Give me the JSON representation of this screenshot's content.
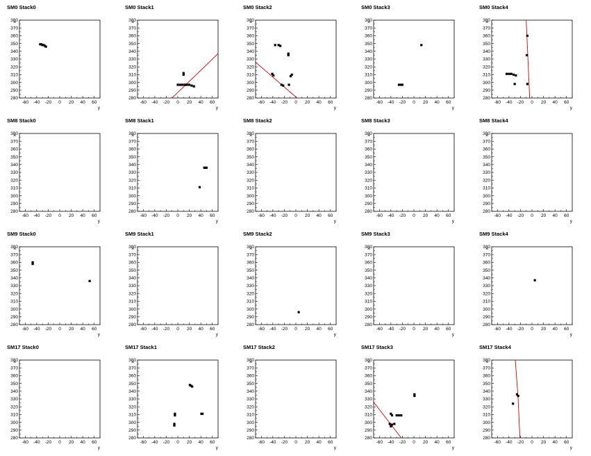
{
  "chart_data": [
    {
      "type": "scatter",
      "title": "SM0 Stack0",
      "xlabel": "y",
      "ylabel": "x",
      "xlim": [
        -70,
        70
      ],
      "ylim": [
        280,
        380
      ],
      "xticks": [
        -60,
        -40,
        -20,
        0,
        20,
        40,
        60
      ],
      "yticks": [
        280,
        290,
        300,
        310,
        320,
        330,
        340,
        350,
        360,
        370,
        380
      ],
      "points": [
        [
          -34,
          349
        ],
        [
          -32,
          349
        ],
        [
          -30,
          348
        ],
        [
          -28,
          348
        ],
        [
          -26,
          347
        ],
        [
          -24,
          346
        ]
      ],
      "lines": []
    },
    {
      "type": "scatter",
      "title": "SM0 Stack1",
      "xlabel": "y",
      "ylabel": "x",
      "xlim": [
        -70,
        70
      ],
      "ylim": [
        280,
        380
      ],
      "xticks": [
        -60,
        -40,
        -20,
        0,
        20,
        40,
        60
      ],
      "yticks": [
        280,
        290,
        300,
        310,
        320,
        330,
        340,
        350,
        360,
        370,
        380
      ],
      "points": [
        [
          0,
          297
        ],
        [
          4,
          297
        ],
        [
          8,
          297
        ],
        [
          12,
          297
        ],
        [
          14,
          297
        ],
        [
          16,
          297
        ],
        [
          20,
          297
        ],
        [
          24,
          296
        ],
        [
          28,
          295
        ],
        [
          10,
          310
        ],
        [
          10,
          312
        ]
      ],
      "lines": [
        [
          [
            -10,
            280
          ],
          [
            70,
            337
          ]
        ]
      ]
    },
    {
      "type": "scatter",
      "title": "SM0 Stack2",
      "xlabel": "y",
      "ylabel": "x",
      "xlim": [
        -70,
        70
      ],
      "ylim": [
        280,
        380
      ],
      "xticks": [
        -60,
        -40,
        -20,
        0,
        20,
        40,
        60
      ],
      "yticks": [
        280,
        290,
        300,
        310,
        320,
        330,
        340,
        350,
        360,
        370,
        380
      ],
      "points": [
        [
          -36,
          348
        ],
        [
          -30,
          348
        ],
        [
          -27,
          347
        ],
        [
          -13,
          335
        ],
        [
          -13,
          337
        ],
        [
          -41,
          311
        ],
        [
          -39,
          309
        ],
        [
          -25,
          297
        ],
        [
          -22,
          296
        ],
        [
          -12,
          297
        ],
        [
          -7,
          310
        ],
        [
          -9,
          308
        ]
      ],
      "lines": [
        [
          [
            -70,
            326
          ],
          [
            2,
            280
          ]
        ]
      ]
    },
    {
      "type": "scatter",
      "title": "SM0 Stack3",
      "xlabel": "y",
      "ylabel": "x",
      "xlim": [
        -70,
        70
      ],
      "ylim": [
        280,
        380
      ],
      "xticks": [
        -60,
        -40,
        -20,
        0,
        20,
        40,
        60
      ],
      "yticks": [
        280,
        290,
        300,
        310,
        320,
        330,
        340,
        350,
        360,
        370,
        380
      ],
      "points": [
        [
          13,
          348
        ],
        [
          -26,
          297
        ],
        [
          -23,
          297
        ],
        [
          -20,
          297
        ]
      ],
      "lines": []
    },
    {
      "type": "scatter",
      "title": "SM0 Stack4",
      "xlabel": "y",
      "ylabel": "x",
      "xlim": [
        -70,
        70
      ],
      "ylim": [
        280,
        380
      ],
      "xticks": [
        -60,
        -40,
        -20,
        0,
        20,
        40,
        60
      ],
      "yticks": [
        280,
        290,
        300,
        310,
        320,
        330,
        340,
        350,
        360,
        370,
        380
      ],
      "points": [
        [
          -8,
          360
        ],
        [
          -9,
          335
        ],
        [
          -44,
          311
        ],
        [
          -40,
          311
        ],
        [
          -36,
          311
        ],
        [
          -32,
          310
        ],
        [
          -28,
          309
        ],
        [
          -30,
          298
        ],
        [
          -8,
          298
        ]
      ],
      "lines": [
        [
          [
            -10,
            380
          ],
          [
            -7,
            330
          ],
          [
            -4,
            280
          ]
        ]
      ]
    },
    {
      "type": "scatter",
      "title": "SM8 Stack0",
      "xlabel": "y",
      "ylabel": "x",
      "xlim": [
        -70,
        70
      ],
      "ylim": [
        280,
        380
      ],
      "xticks": [
        -60,
        -40,
        -20,
        0,
        20,
        40,
        60
      ],
      "yticks": [
        280,
        290,
        300,
        310,
        320,
        330,
        340,
        350,
        360,
        370,
        380
      ],
      "points": [],
      "lines": []
    },
    {
      "type": "scatter",
      "title": "SM8 Stack1",
      "xlabel": "y",
      "ylabel": "x",
      "xlim": [
        -70,
        70
      ],
      "ylim": [
        280,
        380
      ],
      "xticks": [
        -60,
        -40,
        -20,
        0,
        20,
        40,
        60
      ],
      "yticks": [
        280,
        290,
        300,
        310,
        320,
        330,
        340,
        350,
        360,
        370,
        380
      ],
      "points": [
        [
          46,
          336
        ],
        [
          48,
          336
        ],
        [
          50,
          336
        ],
        [
          38,
          311
        ]
      ],
      "lines": []
    },
    {
      "type": "scatter",
      "title": "SM8 Stack2",
      "xlabel": "y",
      "ylabel": "x",
      "xlim": [
        -70,
        70
      ],
      "ylim": [
        280,
        380
      ],
      "xticks": [
        -60,
        -40,
        -20,
        0,
        20,
        40,
        60
      ],
      "yticks": [
        280,
        290,
        300,
        310,
        320,
        330,
        340,
        350,
        360,
        370,
        380
      ],
      "points": [],
      "lines": []
    },
    {
      "type": "scatter",
      "title": "SM8 Stack3",
      "xlabel": "y",
      "ylabel": "x",
      "xlim": [
        -70,
        70
      ],
      "ylim": [
        280,
        380
      ],
      "xticks": [
        -60,
        -40,
        -20,
        0,
        20,
        40,
        60
      ],
      "yticks": [
        280,
        290,
        300,
        310,
        320,
        330,
        340,
        350,
        360,
        370,
        380
      ],
      "points": [],
      "lines": []
    },
    {
      "type": "scatter",
      "title": "SM8 Stack4",
      "xlabel": "y",
      "ylabel": "x",
      "xlim": [
        -70,
        70
      ],
      "ylim": [
        280,
        380
      ],
      "xticks": [
        -60,
        -40,
        -20,
        0,
        20,
        40,
        60
      ],
      "yticks": [
        280,
        290,
        300,
        310,
        320,
        330,
        340,
        350,
        360,
        370,
        380
      ],
      "points": [],
      "lines": []
    },
    {
      "type": "scatter",
      "title": "SM9 Stack0",
      "xlabel": "y",
      "ylabel": "x",
      "xlim": [
        -70,
        70
      ],
      "ylim": [
        280,
        380
      ],
      "xticks": [
        -60,
        -40,
        -20,
        0,
        20,
        40,
        60
      ],
      "yticks": [
        280,
        290,
        300,
        310,
        320,
        330,
        340,
        350,
        360,
        370,
        380
      ],
      "points": [
        [
          -47,
          360
        ],
        [
          -47,
          358
        ],
        [
          52,
          336
        ]
      ],
      "lines": []
    },
    {
      "type": "scatter",
      "title": "SM9 Stack1",
      "xlabel": "y",
      "ylabel": "x",
      "xlim": [
        -70,
        70
      ],
      "ylim": [
        280,
        380
      ],
      "xticks": [
        -60,
        -40,
        -20,
        0,
        20,
        40,
        60
      ],
      "yticks": [
        280,
        290,
        300,
        310,
        320,
        330,
        340,
        350,
        360,
        370,
        380
      ],
      "points": [],
      "lines": []
    },
    {
      "type": "scatter",
      "title": "SM9 Stack2",
      "xlabel": "y",
      "ylabel": "x",
      "xlim": [
        -70,
        70
      ],
      "ylim": [
        280,
        380
      ],
      "xticks": [
        -60,
        -40,
        -20,
        0,
        20,
        40,
        60
      ],
      "yticks": [
        280,
        290,
        300,
        310,
        320,
        330,
        340,
        350,
        360,
        370,
        380
      ],
      "points": [
        [
          5,
          296
        ]
      ],
      "lines": []
    },
    {
      "type": "scatter",
      "title": "SM9 Stack3",
      "xlabel": "y",
      "ylabel": "x",
      "xlim": [
        -70,
        70
      ],
      "ylim": [
        280,
        380
      ],
      "xticks": [
        -60,
        -40,
        -20,
        0,
        20,
        40,
        60
      ],
      "yticks": [
        280,
        290,
        300,
        310,
        320,
        330,
        340,
        350,
        360,
        370,
        380
      ],
      "points": [],
      "lines": []
    },
    {
      "type": "scatter",
      "title": "SM9 Stack4",
      "xlabel": "y",
      "ylabel": "x",
      "xlim": [
        -70,
        70
      ],
      "ylim": [
        280,
        380
      ],
      "xticks": [
        -60,
        -40,
        -20,
        0,
        20,
        40,
        60
      ],
      "yticks": [
        280,
        290,
        300,
        310,
        320,
        330,
        340,
        350,
        360,
        370,
        380
      ],
      "points": [
        [
          5,
          337
        ]
      ],
      "lines": []
    },
    {
      "type": "scatter",
      "title": "SM17 Stack0",
      "xlabel": "y",
      "ylabel": "x",
      "xlim": [
        -70,
        70
      ],
      "ylim": [
        280,
        380
      ],
      "xticks": [
        -60,
        -40,
        -20,
        0,
        20,
        40,
        60
      ],
      "yticks": [
        280,
        290,
        300,
        310,
        320,
        330,
        340,
        350,
        360,
        370,
        380
      ],
      "points": [],
      "lines": []
    },
    {
      "type": "scatter",
      "title": "SM17 Stack1",
      "xlabel": "y",
      "ylabel": "x",
      "xlim": [
        -70,
        70
      ],
      "ylim": [
        280,
        380
      ],
      "xticks": [
        -60,
        -40,
        -20,
        0,
        20,
        40,
        60
      ],
      "yticks": [
        280,
        290,
        300,
        310,
        320,
        330,
        340,
        350,
        360,
        370,
        380
      ],
      "points": [
        [
          21,
          348
        ],
        [
          23,
          347
        ],
        [
          25,
          346
        ],
        [
          -5,
          311
        ],
        [
          -5,
          309
        ],
        [
          -6,
          298
        ],
        [
          -6,
          296
        ],
        [
          41,
          311
        ],
        [
          43,
          311
        ]
      ],
      "lines": []
    },
    {
      "type": "scatter",
      "title": "SM17 Stack2",
      "xlabel": "y",
      "ylabel": "x",
      "xlim": [
        -70,
        70
      ],
      "ylim": [
        280,
        380
      ],
      "xticks": [
        -60,
        -40,
        -20,
        0,
        20,
        40,
        60
      ],
      "yticks": [
        280,
        290,
        300,
        310,
        320,
        330,
        340,
        350,
        360,
        370,
        380
      ],
      "points": [],
      "lines": []
    },
    {
      "type": "scatter",
      "title": "SM17 Stack3",
      "xlabel": "y",
      "ylabel": "x",
      "xlim": [
        -70,
        70
      ],
      "ylim": [
        280,
        380
      ],
      "xticks": [
        -60,
        -40,
        -20,
        0,
        20,
        40,
        60
      ],
      "yticks": [
        280,
        290,
        300,
        310,
        320,
        330,
        340,
        350,
        360,
        370,
        380
      ],
      "points": [
        [
          1,
          336
        ],
        [
          1,
          334
        ],
        [
          -40,
          311
        ],
        [
          -38,
          309
        ],
        [
          -30,
          309
        ],
        [
          -26,
          309
        ],
        [
          -22,
          309
        ],
        [
          -42,
          298
        ],
        [
          -38,
          297
        ],
        [
          -34,
          298
        ],
        [
          -40,
          295
        ]
      ],
      "lines": [
        [
          [
            -70,
            326
          ],
          [
            -22,
            280
          ]
        ]
      ]
    },
    {
      "type": "scatter",
      "title": "SM17 Stack4",
      "xlabel": "y",
      "ylabel": "x",
      "xlim": [
        -70,
        70
      ],
      "ylim": [
        280,
        380
      ],
      "xticks": [
        -60,
        -40,
        -20,
        0,
        20,
        40,
        60
      ],
      "yticks": [
        280,
        290,
        300,
        310,
        320,
        330,
        340,
        350,
        360,
        370,
        380
      ],
      "points": [
        [
          -26,
          336
        ],
        [
          -24,
          334
        ],
        [
          -33,
          324
        ]
      ],
      "lines": [
        [
          [
            -29,
            380
          ],
          [
            -24,
            330
          ],
          [
            -21,
            280
          ]
        ]
      ]
    }
  ]
}
